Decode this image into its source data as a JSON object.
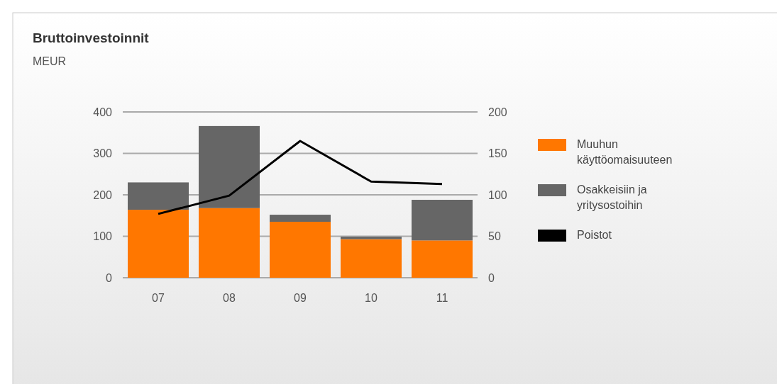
{
  "chart_data": {
    "type": "bar",
    "title": "Bruttoinvestoinnit",
    "subtitle": "MEUR",
    "categories": [
      "07",
      "08",
      "09",
      "10",
      "11"
    ],
    "stacked": true,
    "series": [
      {
        "name": "Muuhun käyttöomaisuuteen",
        "color": "#ff7700",
        "values": [
          164,
          168,
          135,
          93,
          90
        ]
      },
      {
        "name": "Osakkeisiin ja yritysostoihin",
        "color": "#666666",
        "values": [
          66,
          198,
          17,
          6,
          98
        ]
      },
      {
        "name": "Poistot",
        "type": "line",
        "axis": "y2",
        "color": "#000000",
        "values": [
          77,
          99,
          165,
          116,
          113
        ]
      }
    ],
    "ylim": [
      0,
      400
    ],
    "yticks": [
      0,
      100,
      200,
      300,
      400
    ],
    "y2lim": [
      0,
      200
    ],
    "y2ticks": [
      0,
      50,
      100,
      150,
      200
    ],
    "grid": "y",
    "legend": "right"
  }
}
